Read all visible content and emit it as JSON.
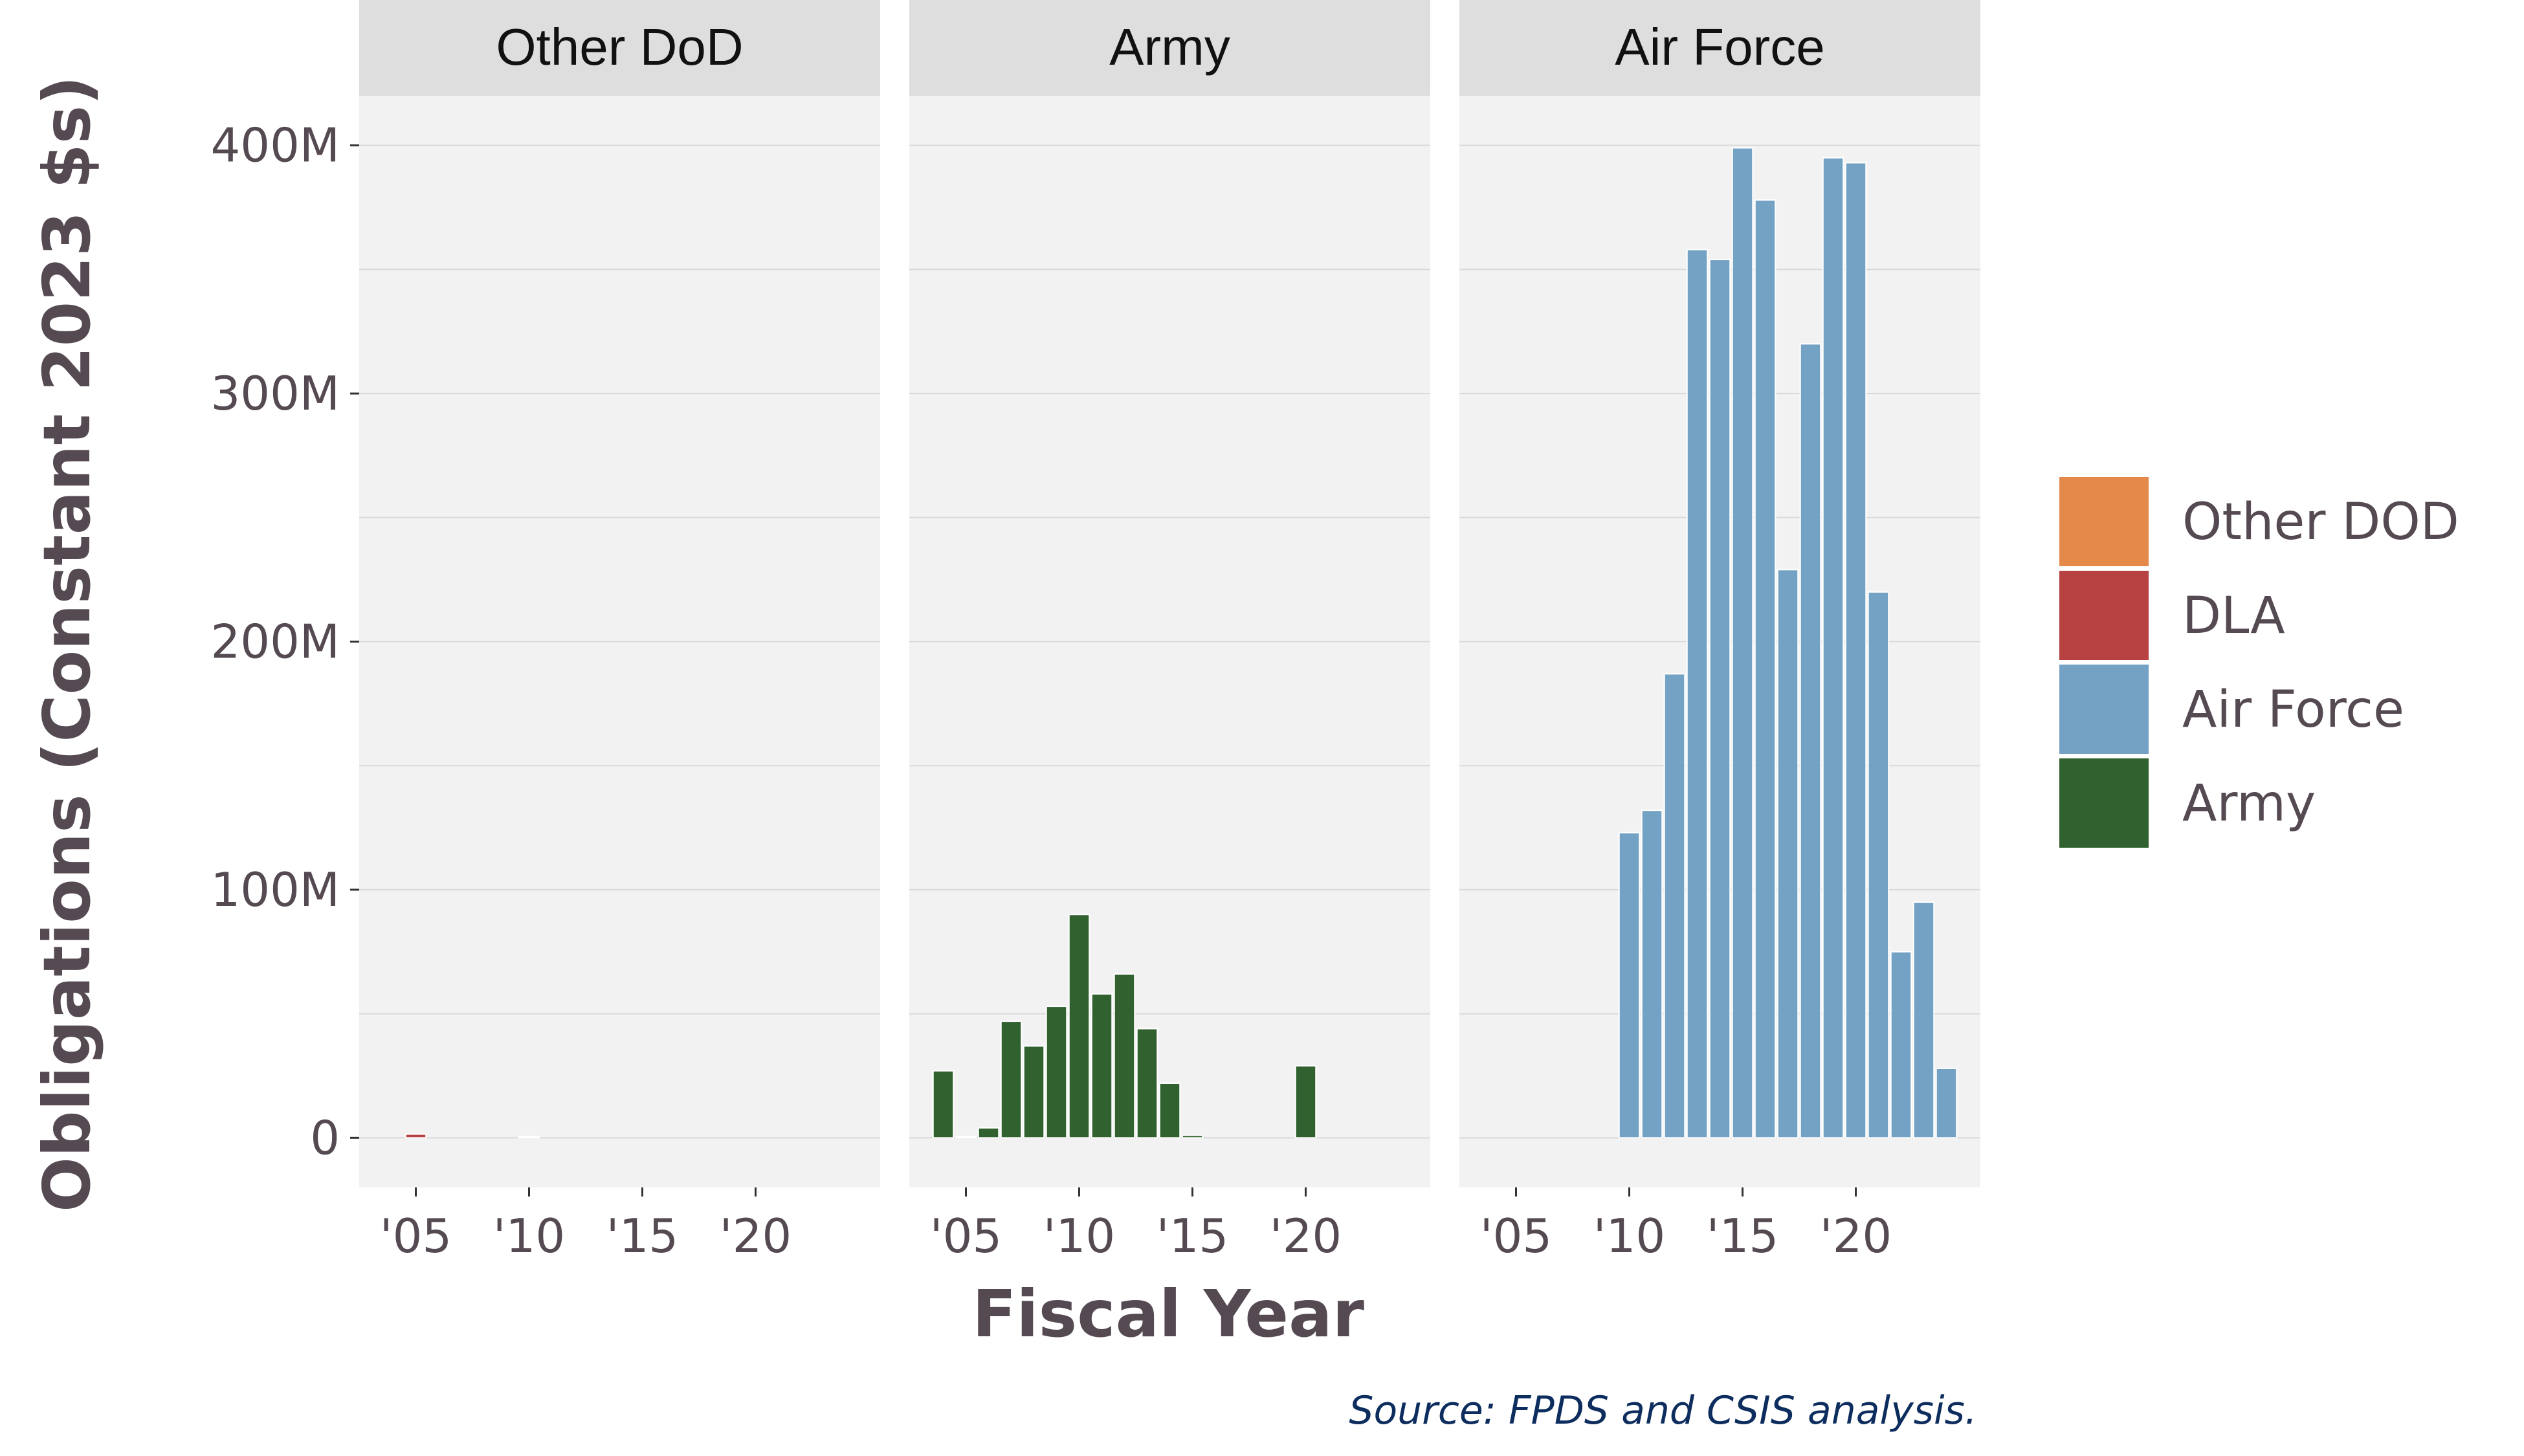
{
  "chart_data": {
    "type": "bar",
    "xlabel": "Fiscal Year",
    "ylabel": "Obligations (Constant 2023 $s)",
    "caption": "Source: FPDS and CSIS analysis.",
    "ylim": [
      -20000000,
      420000000
    ],
    "xlim": [
      2002.5,
      2025.5
    ],
    "x_ticks": [
      2005,
      2010,
      2015,
      2020
    ],
    "x_tick_labels": [
      "'05",
      "'10",
      "'15",
      "'20"
    ],
    "y_ticks": [
      0,
      100000000,
      200000000,
      300000000,
      400000000
    ],
    "y_tick_labels": [
      "0",
      "100M",
      "200M",
      "300M",
      "400M"
    ],
    "grid": true,
    "legend_position": "right",
    "legend": [
      {
        "label": "Other DOD",
        "color": "#e5894a"
      },
      {
        "label": "DLA",
        "color": "#b84141"
      },
      {
        "label": "Air Force",
        "color": "#74a2c4"
      },
      {
        "label": "Army",
        "color": "#30612e"
      }
    ],
    "panels": [
      {
        "title": "Other DoD",
        "series": [
          {
            "name": "DLA",
            "color": "#b84141",
            "x": [
              2005
            ],
            "values": [
              1500000
            ]
          },
          {
            "name": "Other DOD",
            "color": "#e5894a",
            "x": [
              2010
            ],
            "values": [
              300000
            ]
          }
        ]
      },
      {
        "title": "Army",
        "series": [
          {
            "name": "Army",
            "color": "#30612e",
            "x": [
              2004,
              2005,
              2006,
              2007,
              2008,
              2009,
              2010,
              2011,
              2012,
              2013,
              2014,
              2015,
              2020
            ],
            "values": [
              27000000,
              500000,
              4000000,
              47000000,
              37000000,
              53000000,
              90000000,
              58000000,
              66000000,
              44000000,
              22000000,
              1000000,
              29000000
            ]
          }
        ]
      },
      {
        "title": "Air Force",
        "series": [
          {
            "name": "Air Force",
            "color": "#74a2c4",
            "x": [
              2010,
              2011,
              2012,
              2013,
              2014,
              2015,
              2016,
              2017,
              2018,
              2019,
              2020,
              2021,
              2022,
              2023,
              2024
            ],
            "values": [
              123000000,
              132000000,
              187000000,
              358000000,
              354000000,
              399000000,
              378000000,
              229000000,
              320000000,
              395000000,
              393000000,
              220000000,
              75000000,
              95000000,
              28000000
            ]
          }
        ]
      }
    ]
  }
}
